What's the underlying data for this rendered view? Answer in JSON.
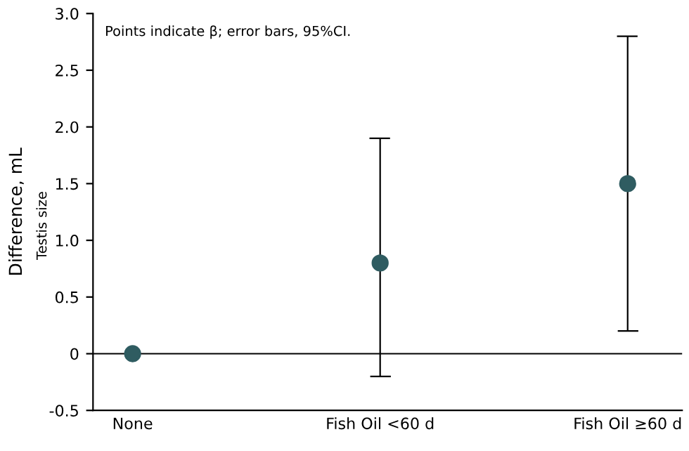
{
  "chart_data": {
    "type": "scatter",
    "ylabel": "Difference, mL",
    "annotations": [
      "Testis size",
      "Points indicate β; error bars, 95%CI."
    ],
    "categories": [
      "None",
      "Fish Oil <60 d",
      "Fish Oil ≥60 d"
    ],
    "series": [
      {
        "color": "#2f5c61",
        "values": [
          0,
          0.8,
          1.5
        ],
        "errors": [
          null,
          [
            -0.2,
            1.9
          ],
          [
            0.2,
            2.8
          ]
        ]
      }
    ],
    "ylim": [
      -0.5,
      3.0
    ],
    "yticks": [
      -0.5,
      0,
      0.5,
      {
        "value": 1,
        "label": "1.0"
      },
      1.5,
      {
        "value": 2,
        "label": "2.0"
      },
      2.5,
      {
        "value": 3,
        "label": "3.0"
      }
    ],
    "ref_lines": [
      {
        "axis": "y",
        "value": 0,
        "color": "#000000"
      }
    ],
    "marker": "circle",
    "grid": false,
    "legend": false
  }
}
